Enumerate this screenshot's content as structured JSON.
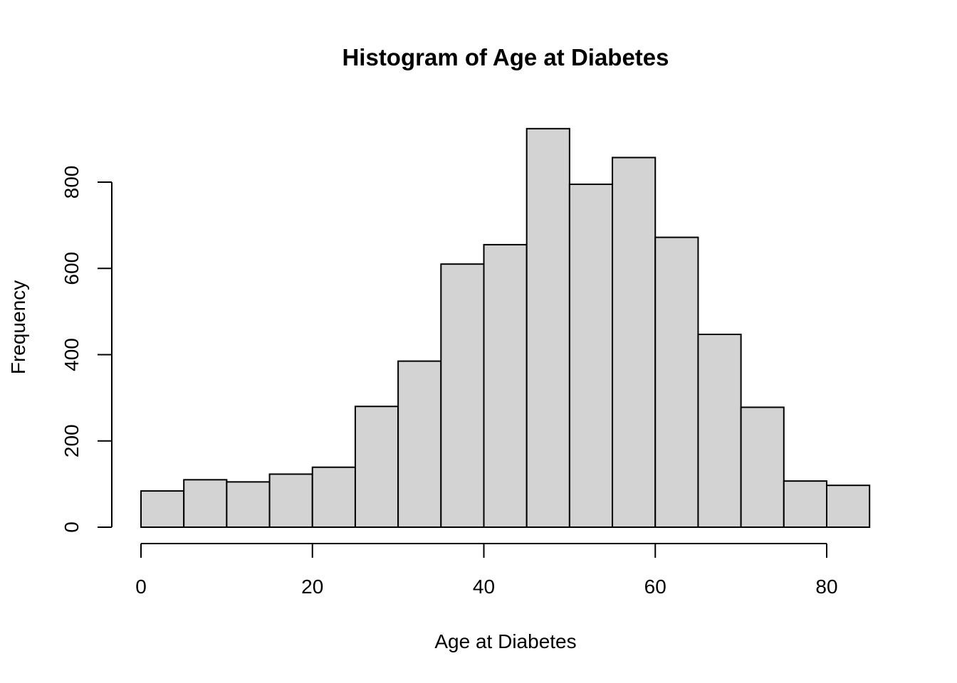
{
  "chart_data": {
    "type": "bar",
    "title": "Histogram of Age at Diabetes",
    "xlabel": "Age at Diabetes",
    "ylabel": "Frequency",
    "bins": [
      {
        "start": 0,
        "end": 5,
        "count": 84
      },
      {
        "start": 5,
        "end": 10,
        "count": 110
      },
      {
        "start": 10,
        "end": 15,
        "count": 105
      },
      {
        "start": 15,
        "end": 20,
        "count": 123
      },
      {
        "start": 20,
        "end": 25,
        "count": 139
      },
      {
        "start": 25,
        "end": 30,
        "count": 280
      },
      {
        "start": 30,
        "end": 35,
        "count": 385
      },
      {
        "start": 35,
        "end": 40,
        "count": 610
      },
      {
        "start": 40,
        "end": 45,
        "count": 655
      },
      {
        "start": 45,
        "end": 50,
        "count": 924
      },
      {
        "start": 50,
        "end": 55,
        "count": 795
      },
      {
        "start": 55,
        "end": 60,
        "count": 857
      },
      {
        "start": 60,
        "end": 65,
        "count": 672
      },
      {
        "start": 65,
        "end": 70,
        "count": 447
      },
      {
        "start": 70,
        "end": 75,
        "count": 278
      },
      {
        "start": 75,
        "end": 80,
        "count": 107
      },
      {
        "start": 80,
        "end": 85,
        "count": 97
      }
    ],
    "xticks": [
      0,
      20,
      40,
      60,
      80
    ],
    "yticks": [
      0,
      200,
      400,
      600,
      800
    ],
    "xlim": [
      0,
      85
    ],
    "ylim": [
      0,
      924
    ],
    "grid": false,
    "colors": {
      "bar_fill": "#d3d3d3",
      "bar_stroke": "#000000"
    }
  }
}
